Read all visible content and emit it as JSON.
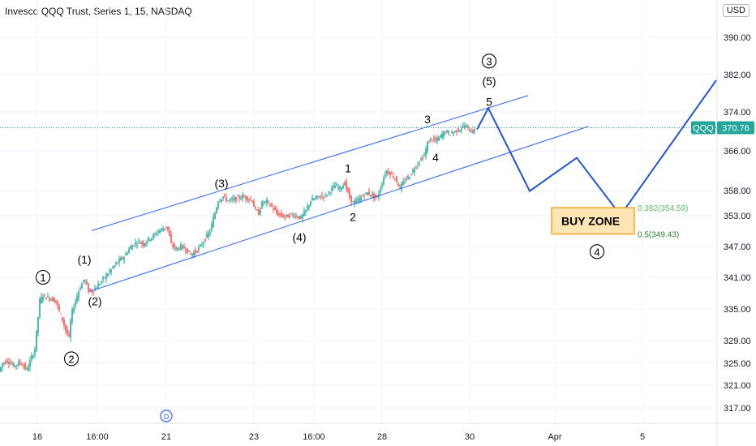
{
  "header": {
    "title": "Invesco QQQ Trust, Series 1, 15, NASDAQ",
    "currency": "USD"
  },
  "colors": {
    "up": "#26a69a",
    "down": "#ef5350",
    "channel": "#2962ff",
    "projection": "#1e55d6",
    "buy_zone_fill": "#fde6b3",
    "buy_zone_border": "#f5a623",
    "fib_382": "#66bb6a",
    "fib_5": "#2e7d32",
    "price_tag": "#26a69a"
  },
  "chart_data": {
    "type": "candlestick",
    "symbol": "QQQ",
    "interval": "15",
    "y_ticks": [
      390.0,
      382.0,
      374.0,
      366.0,
      358.0,
      353.0,
      347.0,
      341.0,
      335.0,
      329.0,
      325.0,
      321.0,
      317.0
    ],
    "y_tick_labels": [
      "390.00",
      "382.00",
      "374.00",
      "366.00",
      "358.00",
      "353.00",
      "347.00",
      "341.00",
      "335.00",
      "329.00",
      "325.00",
      "321.00",
      "317.00"
    ],
    "x_labels": [
      "16",
      "16:00",
      "21",
      "23",
      "16:00",
      "28",
      "30",
      "Apr",
      "5"
    ],
    "last_price": 370.76,
    "last_price_label": "370.76",
    "symbol_tag": "QQQ",
    "price_path": [
      [
        0,
        323.5
      ],
      [
        4,
        325.0
      ],
      [
        10,
        325.5
      ],
      [
        18,
        324.5
      ],
      [
        26,
        325.2
      ],
      [
        34,
        323.8
      ],
      [
        40,
        326.0
      ],
      [
        44,
        327.5
      ],
      [
        47,
        332.0
      ],
      [
        50,
        336.5
      ],
      [
        54,
        337.6
      ],
      [
        58,
        337.2
      ],
      [
        64,
        337.0
      ],
      [
        70,
        336.5
      ],
      [
        74,
        334.5
      ],
      [
        78,
        333.0
      ],
      [
        82,
        331.0
      ],
      [
        86,
        329.5
      ],
      [
        89,
        334.0
      ],
      [
        93,
        336.0
      ],
      [
        97,
        338.0
      ],
      [
        101,
        339.5
      ],
      [
        105,
        340.8
      ],
      [
        110,
        338.5
      ],
      [
        116,
        338.5
      ],
      [
        122,
        339.5
      ],
      [
        130,
        341.0
      ],
      [
        138,
        342.5
      ],
      [
        146,
        344.0
      ],
      [
        154,
        345.0
      ],
      [
        160,
        346.5
      ],
      [
        166,
        347.5
      ],
      [
        172,
        348.0
      ],
      [
        178,
        347.5
      ],
      [
        184,
        348.5
      ],
      [
        190,
        349.0
      ],
      [
        196,
        350.0
      ],
      [
        202,
        350.5
      ],
      [
        207,
        351.0
      ],
      [
        212,
        347.5
      ],
      [
        218,
        346.5
      ],
      [
        224,
        347.0
      ],
      [
        230,
        346.5
      ],
      [
        236,
        345.5
      ],
      [
        242,
        346.0
      ],
      [
        248,
        347.0
      ],
      [
        254,
        348.5
      ],
      [
        260,
        350.0
      ],
      [
        265,
        353.0
      ],
      [
        270,
        356.0
      ],
      [
        276,
        356.8
      ],
      [
        282,
        356.0
      ],
      [
        288,
        356.2
      ],
      [
        294,
        356.5
      ],
      [
        300,
        356.8
      ],
      [
        306,
        356.5
      ],
      [
        312,
        356.0
      ],
      [
        316,
        354.0
      ],
      [
        320,
        353.5
      ],
      [
        324,
        355.5
      ],
      [
        330,
        355.8
      ],
      [
        336,
        354.8
      ],
      [
        342,
        353.5
      ],
      [
        348,
        353.0
      ],
      [
        354,
        352.8
      ],
      [
        360,
        353.2
      ],
      [
        366,
        353.0
      ],
      [
        372,
        352.5
      ],
      [
        378,
        354.0
      ],
      [
        384,
        356.0
      ],
      [
        390,
        356.5
      ],
      [
        396,
        356.8
      ],
      [
        402,
        357.0
      ],
      [
        408,
        358.0
      ],
      [
        414,
        359.0
      ],
      [
        420,
        358.5
      ],
      [
        426,
        359.5
      ],
      [
        431,
        357.0
      ],
      [
        436,
        355.5
      ],
      [
        442,
        356.0
      ],
      [
        448,
        357.0
      ],
      [
        454,
        357.5
      ],
      [
        460,
        357.0
      ],
      [
        466,
        356.5
      ],
      [
        472,
        359.5
      ],
      [
        477,
        362.0
      ],
      [
        482,
        361.5
      ],
      [
        488,
        360.5
      ],
      [
        494,
        358.5
      ],
      [
        500,
        360.0
      ],
      [
        506,
        361.0
      ],
      [
        512,
        362.5
      ],
      [
        518,
        364.0
      ],
      [
        524,
        365.0
      ],
      [
        528,
        367.5
      ],
      [
        532,
        368.5
      ],
      [
        538,
        368.0
      ],
      [
        544,
        369.0
      ],
      [
        550,
        370.0
      ],
      [
        556,
        369.5
      ],
      [
        562,
        370.0
      ],
      [
        568,
        370.5
      ],
      [
        574,
        371.2
      ],
      [
        580,
        370.2
      ],
      [
        585,
        370.0
      ]
    ]
  },
  "annotations": {
    "wave_labels": [
      {
        "text": "1",
        "x": 53,
        "price": 341.0,
        "circled": true
      },
      {
        "text": "2",
        "x": 88,
        "price": 325.8,
        "circled": true
      },
      {
        "text": "(1)",
        "x": 104,
        "price": 344.5,
        "circled": false
      },
      {
        "text": "(2)",
        "x": 117,
        "price": 336.5,
        "circled": false
      },
      {
        "text": "(3)",
        "x": 273,
        "price": 359.5,
        "circled": false
      },
      {
        "text": "(4)",
        "x": 369,
        "price": 348.8,
        "circled": false
      },
      {
        "text": "1",
        "x": 429,
        "price": 362.5,
        "circled": false
      },
      {
        "text": "2",
        "x": 435,
        "price": 352.8,
        "circled": false
      },
      {
        "text": "3",
        "x": 527,
        "price": 372.5,
        "circled": false
      },
      {
        "text": "4",
        "x": 537,
        "price": 364.7,
        "circled": false
      },
      {
        "text": "5",
        "x": 603,
        "price": 376.2,
        "circled": false
      },
      {
        "text": "(5)",
        "x": 603,
        "price": 380.6,
        "circled": false
      },
      {
        "text": "3",
        "x": 603,
        "price": 384.9,
        "circled": true
      },
      {
        "text": "4",
        "x": 736,
        "price": 346.0,
        "circled": true
      }
    ],
    "channel_upper": [
      [
        113,
        350.1
      ],
      [
        651,
        377.5
      ]
    ],
    "channel_lower": [
      [
        110,
        338.3
      ],
      [
        725,
        371.0
      ]
    ],
    "projection": [
      [
        588,
        370.4
      ],
      [
        602,
        374.8
      ],
      [
        653,
        357.9
      ],
      [
        711,
        364.6
      ],
      [
        765,
        353.1
      ],
      [
        883,
        380.8
      ]
    ],
    "buy_zone": {
      "label": "BUY ZONE",
      "x_start": 680,
      "x_end": 782,
      "price_top": 354.59,
      "price_bottom": 349.43
    },
    "fib_levels": [
      {
        "label": "0.382(354.59)",
        "price": 354.59
      },
      {
        "label": "0.5(349.43)",
        "price": 349.43
      }
    ],
    "dividend_marker": "D"
  }
}
